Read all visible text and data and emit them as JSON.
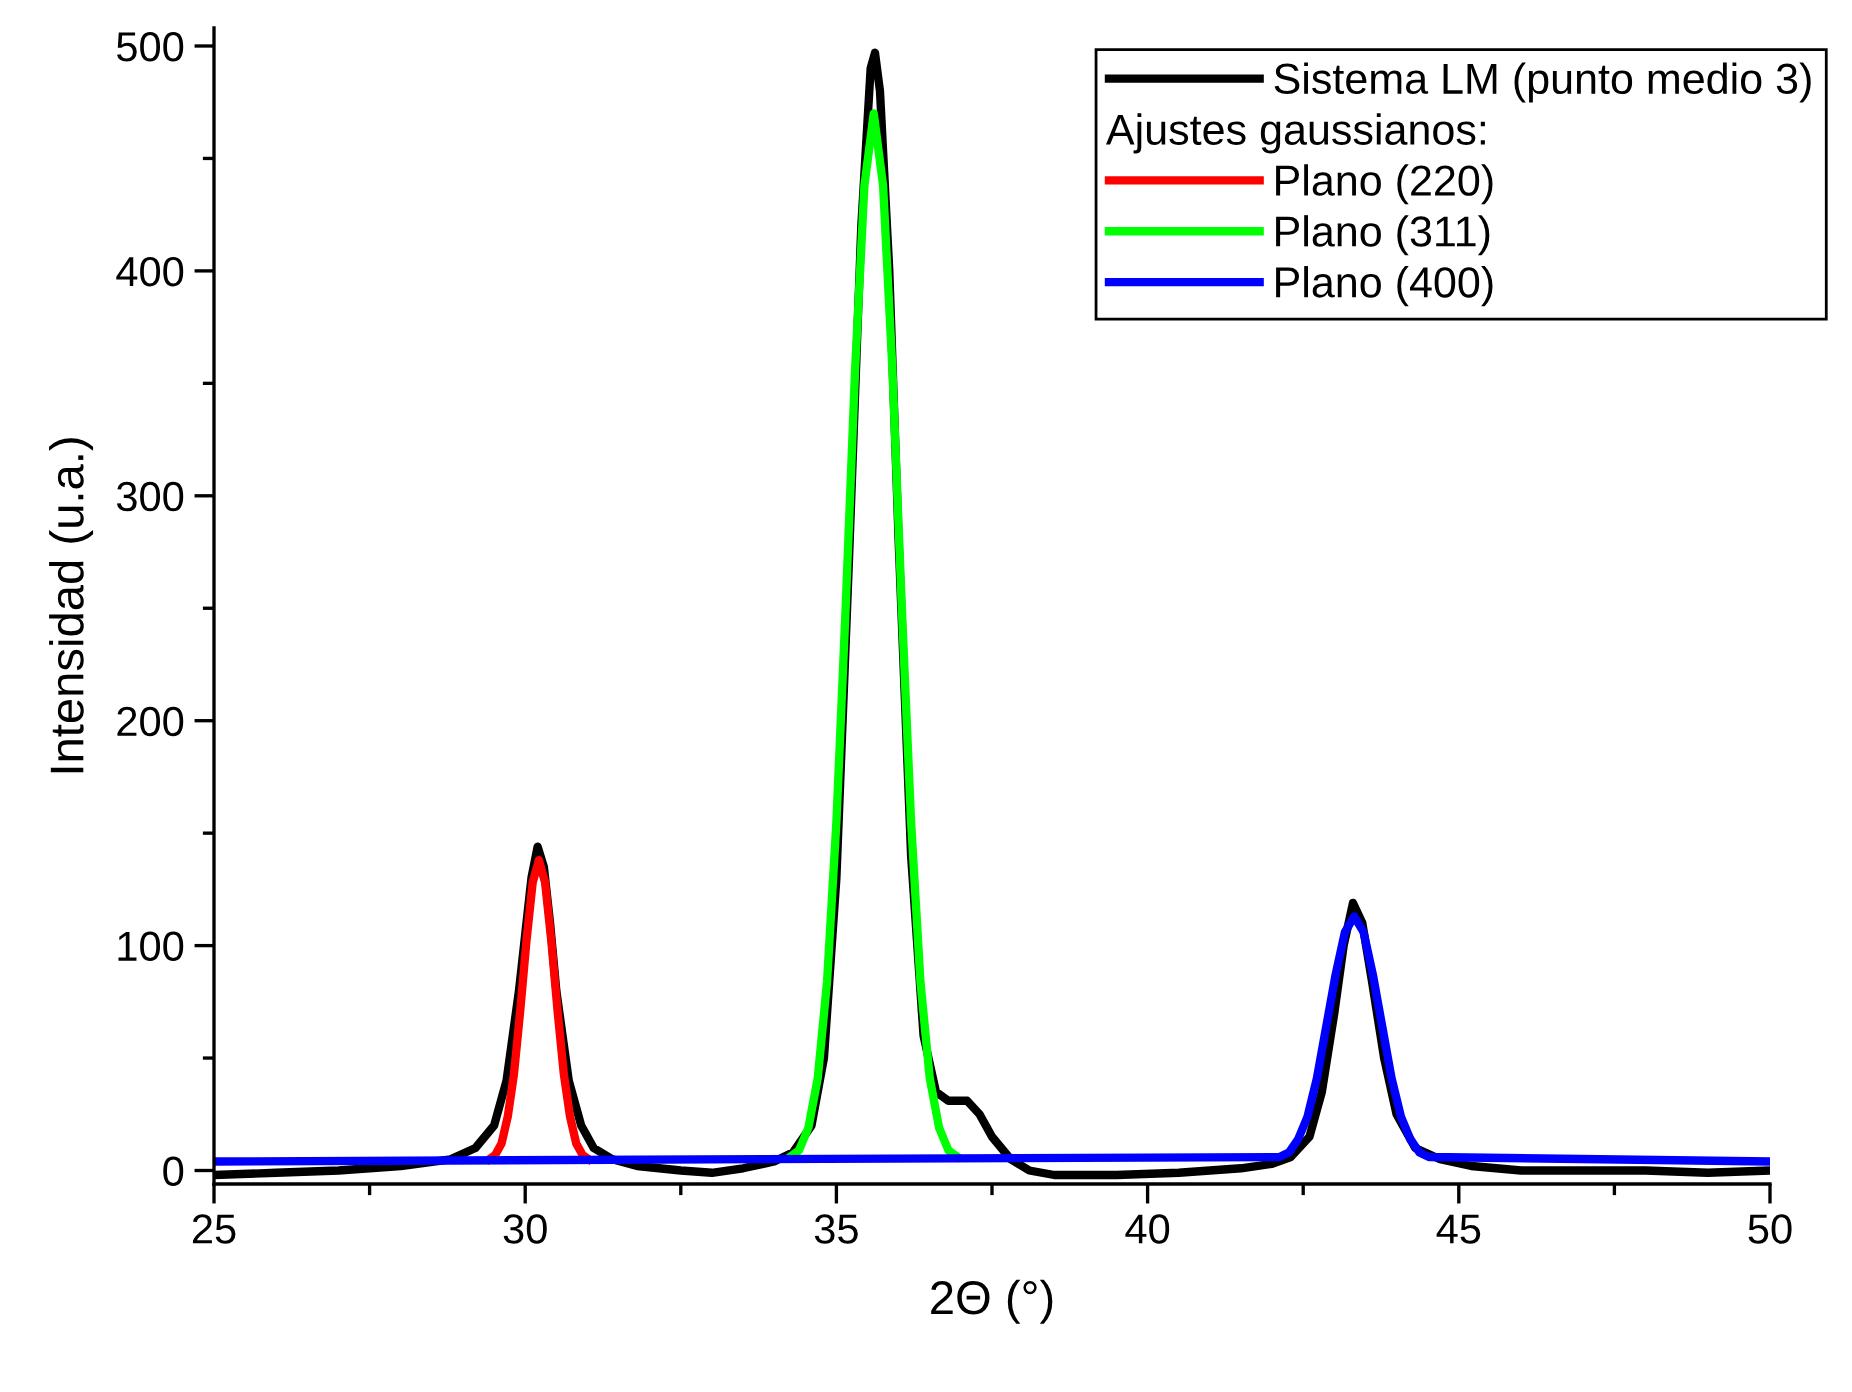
{
  "chart_data": {
    "type": "line",
    "xlabel": "2Θ (°)",
    "ylabel": "Intensidad (u.a.)",
    "xlim": [
      25,
      50
    ],
    "xticks": [
      25,
      30,
      35,
      40,
      45,
      50
    ],
    "ylim": [
      -6,
      508
    ],
    "yticks": [
      0,
      100,
      200,
      300,
      400,
      500
    ],
    "grid": false,
    "legend": "top right",
    "annotations": [
      "Ajustes gaussianos:"
    ],
    "series": [
      {
        "name": "Sistema LM (punto medio 3)",
        "color": "#000000",
        "x": [
          25,
          26,
          27,
          28,
          28.8,
          29.2,
          29.5,
          29.7,
          29.9,
          30.0,
          30.1,
          30.2,
          30.3,
          30.4,
          30.5,
          30.7,
          30.9,
          31.1,
          31.4,
          31.8,
          32.5,
          33,
          33.5,
          34,
          34.3,
          34.6,
          34.8,
          35.0,
          35.2,
          35.4,
          35.55,
          35.62,
          35.7,
          35.85,
          36.0,
          36.2,
          36.4,
          36.6,
          36.8,
          37.1,
          37.3,
          37.5,
          37.8,
          38.1,
          38.5,
          39.5,
          40.5,
          41.5,
          42,
          42.3,
          42.6,
          42.8,
          43.0,
          43.15,
          43.3,
          43.45,
          43.6,
          43.8,
          44.0,
          44.3,
          44.7,
          45.2,
          46,
          47,
          48,
          49,
          50
        ],
        "values": [
          -2,
          -1,
          0,
          2,
          5,
          10,
          20,
          40,
          80,
          105,
          130,
          144,
          135,
          110,
          80,
          40,
          20,
          10,
          5,
          2,
          0,
          -1,
          1,
          4,
          8,
          20,
          50,
          130,
          270,
          420,
          490,
          497,
          480,
          400,
          280,
          140,
          60,
          35,
          31,
          31,
          25,
          15,
          5,
          0,
          -2,
          -2,
          -1,
          1,
          3,
          6,
          15,
          35,
          70,
          100,
          119,
          110,
          85,
          50,
          25,
          10,
          5,
          2,
          0,
          0,
          0,
          -1,
          0
        ]
      },
      {
        "name": "Plano (220)",
        "color": "#ff0000",
        "x": [
          29.42,
          29.52,
          29.62,
          29.72,
          29.82,
          29.92,
          30.02,
          30.12,
          30.22,
          30.32,
          30.42,
          30.52,
          30.62,
          30.72,
          30.82,
          30.92,
          31.02
        ],
        "values": [
          5,
          7,
          12,
          24,
          43,
          71,
          102,
          128,
          138,
          128,
          102,
          71,
          43,
          24,
          12,
          7,
          5
        ]
      },
      {
        "name": "Plano (311)",
        "color": "#00ff00",
        "x": [
          34.25,
          34.4,
          34.55,
          34.7,
          34.85,
          35.0,
          35.15,
          35.3,
          35.45,
          35.6,
          35.75,
          35.9,
          36.05,
          36.2,
          36.35,
          36.5,
          36.65,
          36.8,
          36.95
        ],
        "values": [
          6,
          9,
          19,
          41,
          84,
          155,
          251,
          356,
          438,
          470,
          438,
          356,
          251,
          155,
          84,
          41,
          19,
          9,
          6
        ]
      },
      {
        "name": "Plano (400)",
        "color": "#0000ff",
        "x": [
          25,
          42.12,
          42.27,
          42.42,
          42.57,
          42.72,
          42.87,
          43.02,
          43.17,
          43.32,
          43.47,
          43.62,
          43.77,
          43.92,
          44.07,
          44.22,
          44.37,
          44.52,
          50
        ],
        "values": [
          4,
          6,
          8,
          14,
          24,
          41,
          64,
          87,
          106,
          113,
          106,
          87,
          64,
          41,
          24,
          14,
          8,
          6,
          4
        ]
      }
    ]
  }
}
